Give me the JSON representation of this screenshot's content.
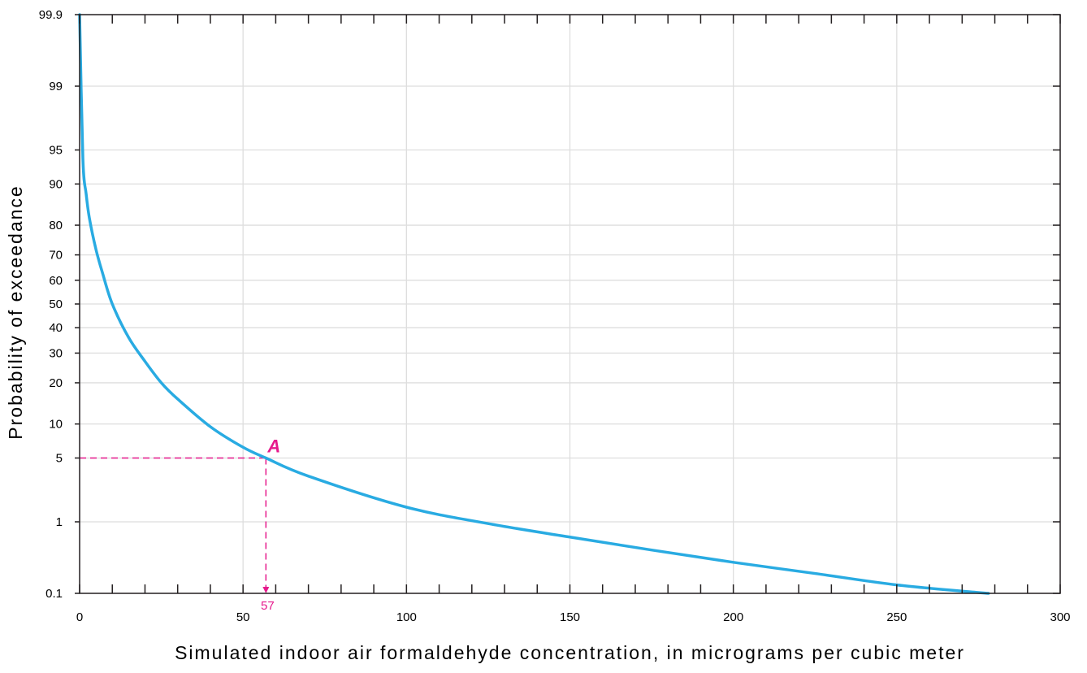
{
  "chart_data": {
    "type": "line",
    "xlabel": "Simulated indoor air formaldehyde concentration, in micrograms per cubic meter",
    "ylabel": "Probability of exceedance",
    "xlim": [
      0,
      300
    ],
    "ylim": [
      0.1,
      99.9
    ],
    "y_scale": "probability",
    "grid": true,
    "x_ticks": [
      0,
      50,
      100,
      150,
      200,
      250,
      300
    ],
    "x_tick_labels": [
      "0",
      "50",
      "100",
      "150",
      "200",
      "250",
      "300"
    ],
    "y_ticks": [
      0.1,
      1,
      5,
      10,
      20,
      30,
      40,
      50,
      60,
      70,
      80,
      90,
      95,
      99,
      99.9
    ],
    "y_tick_labels": [
      "0.1",
      "1",
      "5",
      "10",
      "20",
      "30",
      "40",
      "50",
      "60",
      "70",
      "80",
      "90",
      "95",
      "99",
      "99.9"
    ],
    "series": [
      {
        "color": "#29abe2",
        "x": [
          0,
          1,
          2,
          3,
          5,
          7,
          10,
          15,
          20,
          25,
          30,
          40,
          50,
          57,
          70,
          100,
          125,
          150,
          175,
          200,
          225,
          250,
          275,
          278
        ],
        "values": [
          99.9,
          94,
          88,
          82,
          72,
          63,
          50,
          36,
          27,
          20,
          15.5,
          9.5,
          6.3,
          5,
          3.3,
          1.5,
          0.95,
          0.64,
          0.43,
          0.29,
          0.2,
          0.135,
          0.103,
          0.1
        ]
      }
    ],
    "annotations": [
      {
        "label": "A",
        "x": 57,
        "y": 5,
        "value_label": "57",
        "color": "#e6198c"
      }
    ]
  }
}
